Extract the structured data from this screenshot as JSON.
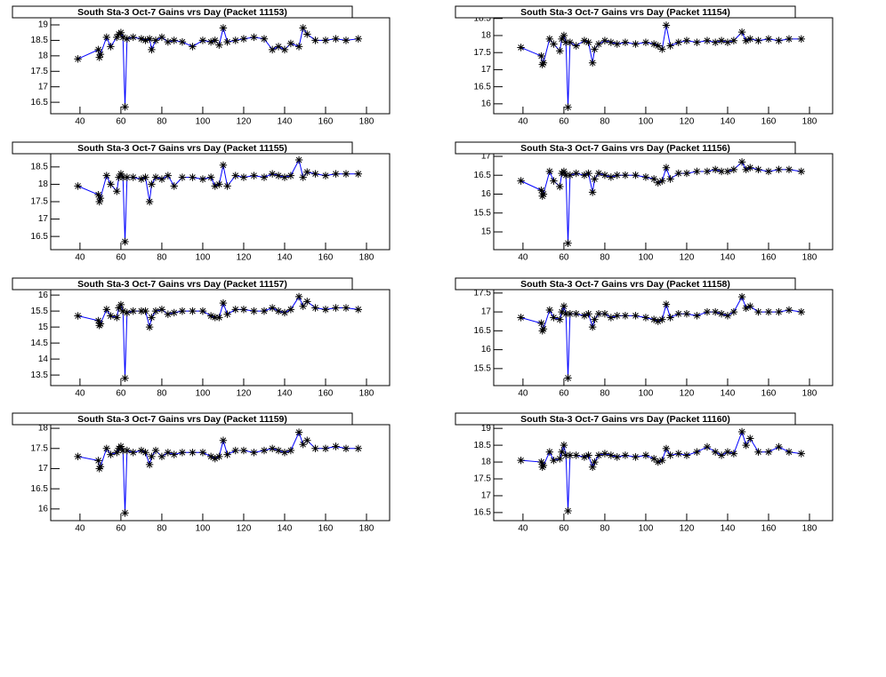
{
  "chart_data": [
    {
      "type": "line",
      "title": "South Sta-3 Oct-7 Gains vrs Day (Packet 11153)",
      "color": "#0000ff",
      "marker_color": "#000000",
      "x": [
        39,
        49,
        49.5,
        50,
        53,
        55,
        58,
        59,
        60,
        61,
        62,
        63,
        66,
        70,
        72,
        74,
        75,
        77,
        80,
        83,
        86,
        90,
        95,
        100,
        104,
        106,
        108,
        110,
        112,
        116,
        120,
        125,
        130,
        134,
        137,
        140,
        143,
        147,
        149,
        151,
        155,
        160,
        165,
        170,
        176
      ],
      "values": [
        17.9,
        18.2,
        17.95,
        18.05,
        18.6,
        18.3,
        18.6,
        18.7,
        18.75,
        18.6,
        16.35,
        18.55,
        18.6,
        18.55,
        18.5,
        18.55,
        18.2,
        18.5,
        18.6,
        18.45,
        18.5,
        18.45,
        18.3,
        18.5,
        18.45,
        18.5,
        18.35,
        18.9,
        18.45,
        18.5,
        18.55,
        18.6,
        18.55,
        18.2,
        18.3,
        18.2,
        18.4,
        18.3,
        18.9,
        18.7,
        18.5,
        18.5,
        18.55,
        18.5,
        18.55
      ],
      "xlim": [
        25.7,
        191.3
      ],
      "ylim": [
        16.13,
        19.23
      ],
      "xticks": [
        40,
        60,
        80,
        100,
        120,
        140,
        160,
        180
      ],
      "yticks": [
        16.5,
        17,
        17.5,
        18,
        18.5,
        19
      ]
    },
    {
      "type": "line",
      "title": "South Sta-3 Oct-7 Gains vrs Day (Packet 11154)",
      "color": "#0000ff",
      "marker_color": "#000000",
      "x": [
        39,
        49,
        49.5,
        50,
        53,
        55,
        58,
        59,
        60,
        61,
        62,
        63,
        66,
        70,
        72,
        74,
        75,
        77,
        80,
        83,
        86,
        90,
        95,
        100,
        104,
        106,
        108,
        110,
        112,
        116,
        120,
        125,
        130,
        134,
        137,
        140,
        143,
        147,
        149,
        151,
        155,
        160,
        165,
        170,
        176
      ],
      "values": [
        17.65,
        17.4,
        17.15,
        17.2,
        17.9,
        17.75,
        17.55,
        17.9,
        18.0,
        17.8,
        15.9,
        17.8,
        17.7,
        17.85,
        17.8,
        17.2,
        17.6,
        17.75,
        17.85,
        17.8,
        17.75,
        17.8,
        17.75,
        17.8,
        17.75,
        17.7,
        17.6,
        18.3,
        17.7,
        17.8,
        17.85,
        17.8,
        17.85,
        17.8,
        17.85,
        17.8,
        17.85,
        18.1,
        17.85,
        17.9,
        17.85,
        17.9,
        17.85,
        17.9,
        17.9
      ],
      "xlim": [
        25.7,
        191.3
      ],
      "ylim": [
        15.71,
        18.52
      ],
      "xticks": [
        40,
        60,
        80,
        100,
        120,
        140,
        160,
        180
      ],
      "yticks": [
        16,
        16.5,
        17,
        17.5,
        18,
        18.5
      ]
    },
    {
      "type": "line",
      "title": "South Sta-3 Oct-7 Gains vrs Day (Packet 11155)",
      "color": "#0000ff",
      "marker_color": "#000000",
      "x": [
        39,
        49,
        49.5,
        50,
        53,
        55,
        58,
        59,
        60,
        61,
        62,
        63,
        66,
        70,
        72,
        74,
        75,
        77,
        80,
        83,
        86,
        90,
        95,
        100,
        104,
        106,
        108,
        110,
        112,
        116,
        120,
        125,
        130,
        134,
        137,
        140,
        143,
        147,
        149,
        151,
        155,
        160,
        165,
        170,
        176
      ],
      "values": [
        17.95,
        17.7,
        17.5,
        17.6,
        18.25,
        18.0,
        17.8,
        18.2,
        18.3,
        18.2,
        16.35,
        18.2,
        18.2,
        18.15,
        18.2,
        17.5,
        18.0,
        18.2,
        18.15,
        18.25,
        17.95,
        18.2,
        18.2,
        18.15,
        18.2,
        17.95,
        18.0,
        18.55,
        17.95,
        18.25,
        18.2,
        18.25,
        18.2,
        18.3,
        18.25,
        18.2,
        18.25,
        18.7,
        18.2,
        18.35,
        18.3,
        18.25,
        18.3,
        18.3,
        18.3
      ],
      "xlim": [
        25.7,
        191.3
      ],
      "ylim": [
        16.12,
        18.88
      ],
      "xticks": [
        40,
        60,
        80,
        100,
        120,
        140,
        160,
        180
      ],
      "yticks": [
        16.5,
        17,
        17.5,
        18,
        18.5
      ]
    },
    {
      "type": "line",
      "title": "South Sta-3 Oct-7 Gains vrs Day (Packet 11156)",
      "color": "#0000ff",
      "marker_color": "#000000",
      "x": [
        39,
        49,
        49.5,
        50,
        53,
        55,
        58,
        59,
        60,
        61,
        62,
        63,
        66,
        70,
        72,
        74,
        75,
        77,
        80,
        83,
        86,
        90,
        95,
        100,
        104,
        106,
        108,
        110,
        112,
        116,
        120,
        125,
        130,
        134,
        137,
        140,
        143,
        147,
        149,
        151,
        155,
        160,
        165,
        170,
        176
      ],
      "values": [
        16.35,
        16.1,
        15.95,
        16.0,
        16.6,
        16.35,
        16.2,
        16.55,
        16.6,
        16.5,
        14.7,
        16.5,
        16.55,
        16.5,
        16.55,
        16.05,
        16.4,
        16.55,
        16.5,
        16.45,
        16.5,
        16.5,
        16.5,
        16.45,
        16.4,
        16.3,
        16.35,
        16.7,
        16.4,
        16.55,
        16.55,
        16.6,
        16.6,
        16.65,
        16.6,
        16.6,
        16.65,
        16.85,
        16.65,
        16.7,
        16.65,
        16.6,
        16.65,
        16.65,
        16.6
      ],
      "xlim": [
        25.7,
        191.3
      ],
      "ylim": [
        14.53,
        17.07
      ],
      "xticks": [
        40,
        60,
        80,
        100,
        120,
        140,
        160,
        180
      ],
      "yticks": [
        15,
        15.5,
        16,
        16.5,
        17
      ]
    },
    {
      "type": "line",
      "title": "South Sta-3 Oct-7 Gains vrs Day (Packet 11157)",
      "color": "#0000ff",
      "marker_color": "#000000",
      "x": [
        39,
        49,
        49.5,
        50,
        53,
        55,
        58,
        59,
        60,
        61,
        62,
        63,
        66,
        70,
        72,
        74,
        75,
        77,
        80,
        83,
        86,
        90,
        95,
        100,
        104,
        106,
        108,
        110,
        112,
        116,
        120,
        125,
        130,
        134,
        137,
        140,
        143,
        147,
        149,
        151,
        155,
        160,
        165,
        170,
        176
      ],
      "values": [
        15.35,
        15.2,
        15.05,
        15.1,
        15.55,
        15.35,
        15.3,
        15.6,
        15.7,
        15.5,
        13.4,
        15.45,
        15.5,
        15.5,
        15.5,
        15.0,
        15.3,
        15.5,
        15.55,
        15.4,
        15.45,
        15.5,
        15.5,
        15.5,
        15.35,
        15.3,
        15.3,
        15.75,
        15.4,
        15.55,
        15.55,
        15.5,
        15.5,
        15.6,
        15.5,
        15.45,
        15.55,
        15.95,
        15.65,
        15.8,
        15.6,
        15.55,
        15.6,
        15.6,
        15.55
      ],
      "xlim": [
        25.7,
        191.3
      ],
      "ylim": [
        13.17,
        16.17
      ],
      "xticks": [
        40,
        60,
        80,
        100,
        120,
        140,
        160,
        180
      ],
      "yticks": [
        13.5,
        14,
        14.5,
        15,
        15.5,
        16
      ]
    },
    {
      "type": "line",
      "title": "South Sta-3 Oct-7 Gains vrs Day (Packet 11158)",
      "color": "#0000ff",
      "marker_color": "#000000",
      "x": [
        39,
        49,
        49.5,
        50,
        53,
        55,
        58,
        59,
        60,
        61,
        62,
        63,
        66,
        70,
        72,
        74,
        75,
        77,
        80,
        83,
        86,
        90,
        95,
        100,
        104,
        106,
        108,
        110,
        112,
        116,
        120,
        125,
        130,
        134,
        137,
        140,
        143,
        147,
        149,
        151,
        155,
        160,
        165,
        170,
        176
      ],
      "values": [
        16.85,
        16.7,
        16.5,
        16.55,
        17.05,
        16.85,
        16.8,
        17.0,
        17.15,
        16.95,
        15.25,
        16.95,
        16.95,
        16.9,
        16.95,
        16.6,
        16.8,
        16.95,
        16.95,
        16.85,
        16.9,
        16.9,
        16.9,
        16.85,
        16.8,
        16.75,
        16.8,
        17.2,
        16.85,
        16.95,
        16.95,
        16.9,
        17.0,
        17.0,
        16.95,
        16.9,
        17.0,
        17.4,
        17.1,
        17.15,
        17.0,
        17.0,
        17.0,
        17.05,
        17.0
      ],
      "xlim": [
        25.7,
        191.3
      ],
      "ylim": [
        15.05,
        17.59
      ],
      "xticks": [
        40,
        60,
        80,
        100,
        120,
        140,
        160,
        180
      ],
      "yticks": [
        15.5,
        16,
        16.5,
        17,
        17.5
      ]
    },
    {
      "type": "line",
      "title": "South Sta-3 Oct-7 Gains vrs Day (Packet 11159)",
      "color": "#0000ff",
      "marker_color": "#000000",
      "x": [
        39,
        49,
        49.5,
        50,
        53,
        55,
        58,
        59,
        60,
        61,
        62,
        63,
        66,
        70,
        72,
        74,
        75,
        77,
        80,
        83,
        86,
        90,
        95,
        100,
        104,
        106,
        108,
        110,
        112,
        116,
        120,
        125,
        130,
        134,
        137,
        140,
        143,
        147,
        149,
        151,
        155,
        160,
        165,
        170,
        176
      ],
      "values": [
        17.3,
        17.2,
        17.0,
        17.05,
        17.5,
        17.35,
        17.4,
        17.5,
        17.55,
        17.45,
        15.9,
        17.45,
        17.4,
        17.45,
        17.4,
        17.1,
        17.3,
        17.45,
        17.3,
        17.4,
        17.35,
        17.4,
        17.4,
        17.4,
        17.3,
        17.25,
        17.3,
        17.7,
        17.35,
        17.45,
        17.45,
        17.4,
        17.45,
        17.5,
        17.45,
        17.4,
        17.45,
        17.9,
        17.6,
        17.7,
        17.5,
        17.5,
        17.55,
        17.5,
        17.5
      ],
      "xlim": [
        25.7,
        191.3
      ],
      "ylim": [
        15.71,
        18.09
      ],
      "xticks": [
        40,
        60,
        80,
        100,
        120,
        140,
        160,
        180
      ],
      "yticks": [
        16,
        16.5,
        17,
        17.5,
        18
      ]
    },
    {
      "type": "line",
      "title": "South Sta-3 Oct-7 Gains vrs Day (Packet 11160)",
      "color": "#0000ff",
      "marker_color": "#000000",
      "x": [
        39,
        49,
        49.5,
        50,
        53,
        55,
        58,
        59,
        60,
        61,
        62,
        63,
        66,
        70,
        72,
        74,
        75,
        77,
        80,
        83,
        86,
        90,
        95,
        100,
        104,
        106,
        108,
        110,
        112,
        116,
        120,
        125,
        130,
        134,
        137,
        140,
        143,
        147,
        149,
        151,
        155,
        160,
        165,
        170,
        176
      ],
      "values": [
        18.05,
        18.0,
        17.85,
        17.9,
        18.3,
        18.05,
        18.1,
        18.3,
        18.5,
        18.2,
        16.55,
        18.2,
        18.2,
        18.15,
        18.2,
        17.85,
        18.0,
        18.2,
        18.25,
        18.2,
        18.15,
        18.2,
        18.15,
        18.2,
        18.1,
        18.0,
        18.05,
        18.4,
        18.2,
        18.25,
        18.2,
        18.3,
        18.45,
        18.3,
        18.2,
        18.3,
        18.25,
        18.9,
        18.5,
        18.7,
        18.3,
        18.3,
        18.45,
        18.3,
        18.25
      ],
      "xlim": [
        25.7,
        191.3
      ],
      "ylim": [
        16.26,
        19.11
      ],
      "xticks": [
        40,
        60,
        80,
        100,
        120,
        140,
        160,
        180
      ],
      "yticks": [
        16.5,
        17,
        17.5,
        18,
        18.5,
        19
      ]
    }
  ]
}
